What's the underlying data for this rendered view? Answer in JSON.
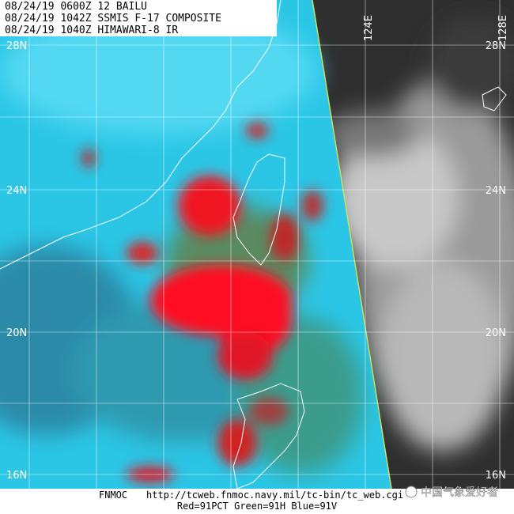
{
  "header": {
    "lines": [
      "08/24/19 0600Z  12 BAILU",
      "08/24/19 1042Z  SSMIS F-17 COMPOSITE",
      "08/24/19 1040Z  HIMAWARI-8 IR"
    ]
  },
  "grid": {
    "lat_labels": [
      "28N",
      "24N",
      "20N",
      "16N"
    ],
    "lon_labels": [
      "124E",
      "128E"
    ]
  },
  "footer": {
    "source": "FNMOC",
    "url": "http://tcweb.fnmoc.navy.mil/tc-bin/tc_web.cgi",
    "channels": "Red=91PCT  Green=91H  Blue=91V"
  },
  "watermark": "中国气象爱好者"
}
